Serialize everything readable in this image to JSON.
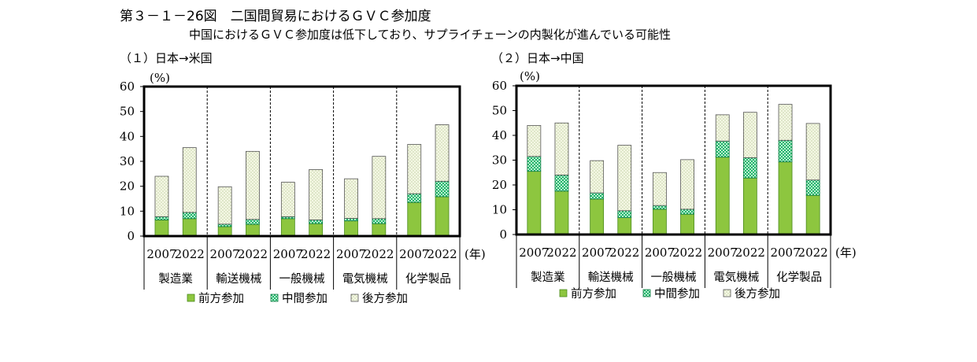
{
  "header": {
    "title": "第３－１－26図　二国間貿易におけるＧＶＣ参加度",
    "subtitle": "中国におけるＧＶＣ参加度は低下しており、サプライチェーンの内製化が進んでいる可能性"
  },
  "colors": {
    "forward": "#8dc63f",
    "middle": "#1fb56a",
    "backward": "#f4f7e4",
    "backward_dots": "#8aa35a"
  },
  "chart_data": [
    {
      "type": "bar",
      "stacked": true,
      "title": "（１）日本→米国",
      "ylabel": "(%)",
      "xunit": "(年)",
      "ylim": [
        0,
        60
      ],
      "yticks": [
        0,
        10,
        20,
        30,
        40,
        50,
        60
      ],
      "groups": [
        "製造業",
        "輸送機械",
        "一般機械",
        "電気機械",
        "化学製品"
      ],
      "years": [
        "2007",
        "2022"
      ],
      "categories": [
        "2007",
        "2022",
        "2007",
        "2022",
        "2007",
        "2022",
        "2007",
        "2022",
        "2007",
        "2022"
      ],
      "series": [
        {
          "name": "前方参加",
          "values": [
            6.5,
            7.0,
            3.8,
            4.7,
            7.0,
            5.0,
            6.1,
            5.0,
            13.5,
            15.8
          ]
        },
        {
          "name": "中間参加",
          "values": [
            1.3,
            2.5,
            1.0,
            2.0,
            0.8,
            1.5,
            1.0,
            2.0,
            3.5,
            6.2
          ]
        },
        {
          "name": "後方参加",
          "values": [
            16.2,
            26.0,
            15.0,
            27.3,
            13.8,
            20.2,
            15.9,
            25.0,
            19.8,
            22.7
          ]
        }
      ],
      "legend": "bottom"
    },
    {
      "type": "bar",
      "stacked": true,
      "title": "（２）日本→中国",
      "ylabel": "(%)",
      "xunit": "(年)",
      "ylim": [
        0,
        60
      ],
      "yticks": [
        0,
        10,
        20,
        30,
        40,
        50,
        60
      ],
      "groups": [
        "製造業",
        "輸送機械",
        "一般機械",
        "電気機械",
        "化学製品"
      ],
      "years": [
        "2007",
        "2022"
      ],
      "categories": [
        "2007",
        "2022",
        "2007",
        "2022",
        "2007",
        "2022",
        "2007",
        "2022",
        "2007",
        "2022"
      ],
      "series": [
        {
          "name": "前方参加",
          "values": [
            25.5,
            17.5,
            14.3,
            6.8,
            10.2,
            8.2,
            31.2,
            22.8,
            29.3,
            15.8
          ]
        },
        {
          "name": "中間参加",
          "values": [
            6.0,
            6.5,
            2.5,
            2.8,
            1.5,
            2.0,
            6.5,
            8.2,
            8.7,
            6.2
          ]
        },
        {
          "name": "後方参加",
          "values": [
            12.5,
            21.0,
            13.0,
            26.4,
            13.3,
            20.0,
            10.6,
            18.3,
            14.5,
            22.8
          ]
        }
      ],
      "legend": "bottom"
    }
  ]
}
